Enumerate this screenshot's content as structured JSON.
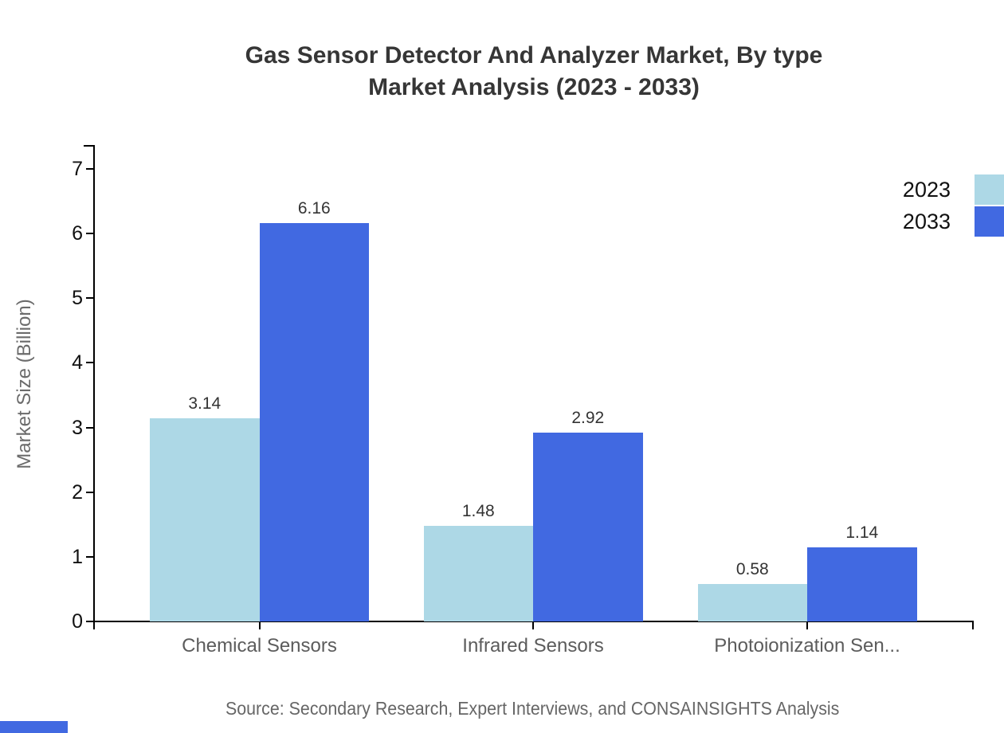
{
  "chart_data": {
    "type": "bar",
    "title": "Gas Sensor Detector And Analyzer Market, By type Market Analysis (2023 - 2033)",
    "title_lines": [
      "Gas Sensor Detector And Analyzer Market, By type",
      "Market Analysis (2023 - 2033)"
    ],
    "categories": [
      "Chemical Sensors",
      "Infrared Sensors",
      "Photoionization Sen..."
    ],
    "series": [
      {
        "name": "2023",
        "color": "#ADD8E6",
        "values": [
          3.14,
          1.48,
          0.58
        ]
      },
      {
        "name": "2033",
        "color": "#4169E1",
        "values": [
          6.16,
          2.92,
          1.14
        ]
      }
    ],
    "xlabel": "",
    "ylabel": "Market Size (Billion)",
    "ylim": [
      0,
      7
    ],
    "yticks": [
      0,
      1,
      2,
      3,
      4,
      5,
      6,
      7
    ],
    "grid": false,
    "legend_position": "top-right",
    "value_labels_shown": true,
    "source": "Source: Secondary Research, Expert Interviews, and CONSAINSIGHTS Analysis"
  },
  "colors": {
    "series_2023": "#ADD8E6",
    "series_2033": "#4169E1",
    "axis": "#000000",
    "title_text": "#363636",
    "category_text": "#5c5c5c",
    "tick_text": "#111111",
    "value_text": "#333333",
    "source_text": "#666666",
    "brand_bar": "#4169E1"
  }
}
